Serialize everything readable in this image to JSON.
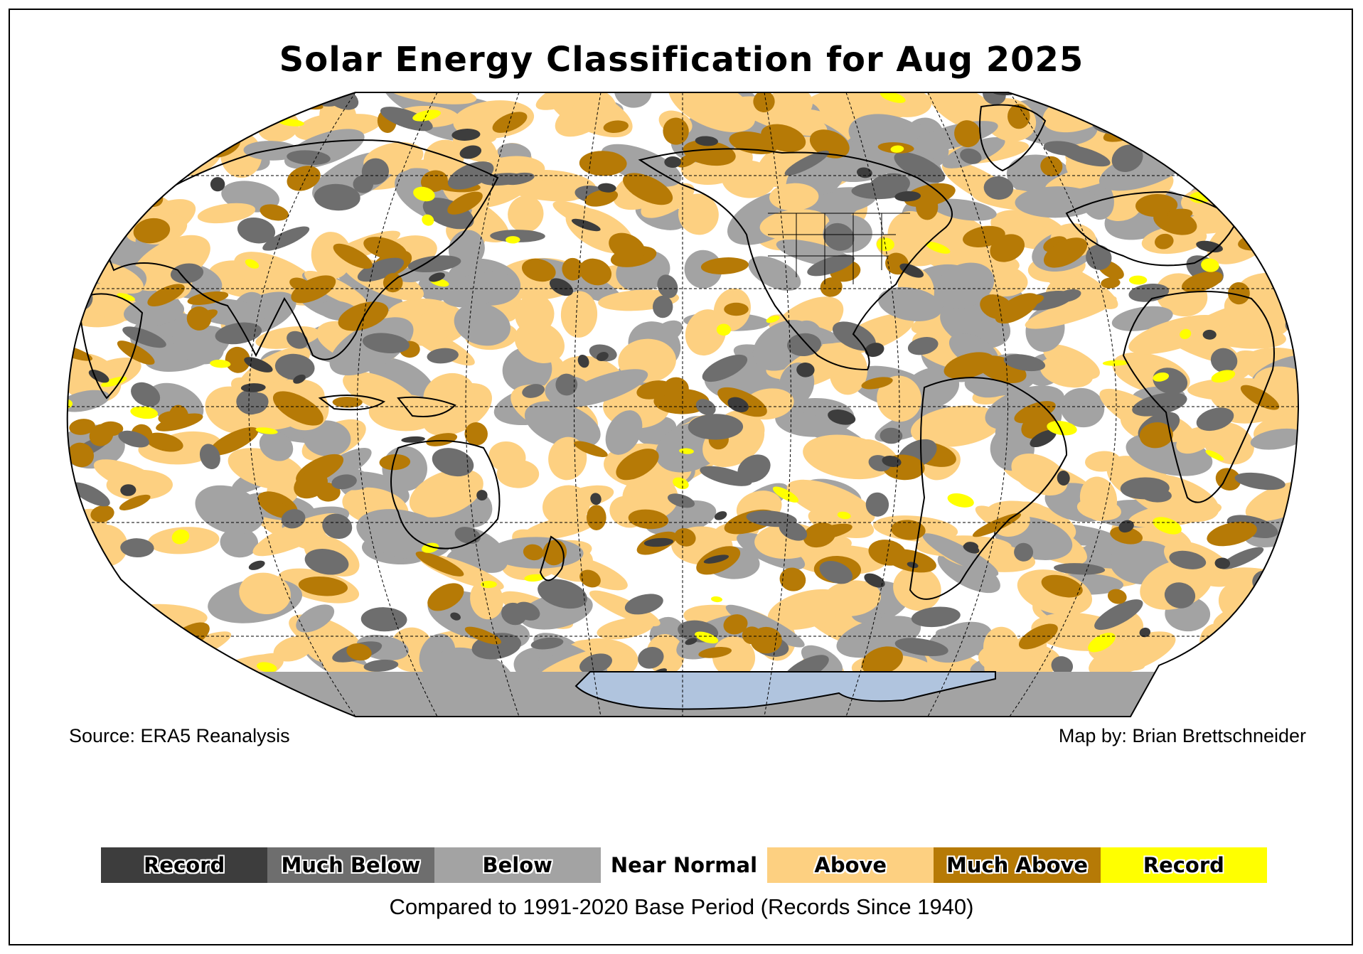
{
  "title": "Solar Energy Classification for Aug 2025",
  "source": "Source: ERA5 Reanalysis",
  "map_by": "Map by: Brian Brettschneider",
  "legend": [
    {
      "label": "Record",
      "color": "#3d3d3d"
    },
    {
      "label": "Much Below",
      "color": "#6e6e6e"
    },
    {
      "label": "Below",
      "color": "#a3a3a3"
    },
    {
      "label": "Near Normal",
      "color": "#ffffff"
    },
    {
      "label": "Above",
      "color": "#fdd081"
    },
    {
      "label": "Much Above",
      "color": "#b67a06"
    },
    {
      "label": "Record",
      "color": "#ffff00"
    }
  ],
  "footnote": "Compared to 1991-2020 Base Period   (Records Since 1940)",
  "map": {
    "projection": "Robinson",
    "variable": "Solar energy anomaly classification",
    "missing_data_color": "#a3a3a3",
    "antarctica_color": "#b0c4de"
  }
}
